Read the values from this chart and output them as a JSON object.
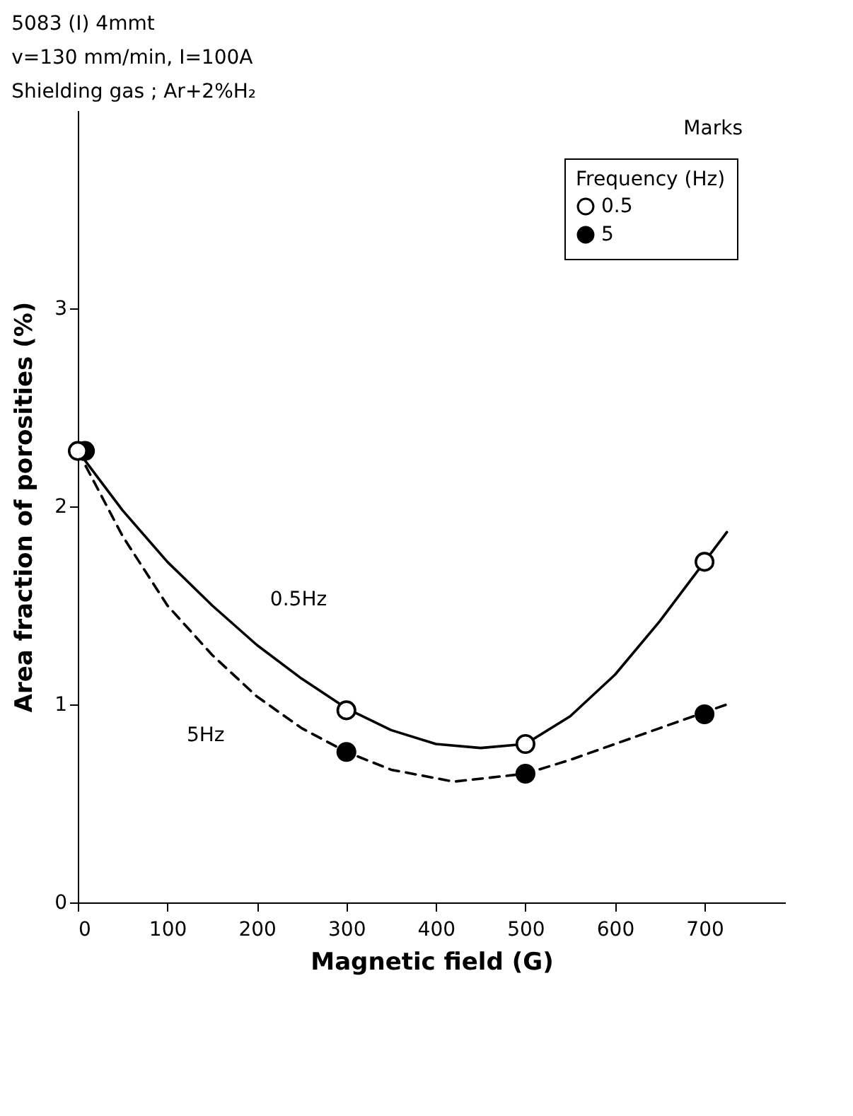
{
  "chart_data": {
    "type": "scatter",
    "annotations": [
      "5083 (I)     4mmt",
      "v=130 mm/min,  I=100A",
      "Shielding gas ; Ar+2%H₂",
      "Marks",
      {
        "text": "0.5Hz",
        "x": 180,
        "y": 1.37
      },
      {
        "text": "5Hz",
        "x": 205,
        "y": 1.0
      }
    ],
    "xlabel": "Magnetic field (G)",
    "ylabel": "Area fraction of porosities (%)",
    "legend_title": "Frequency (Hz)",
    "legend": "top right",
    "xlim": [
      0,
      790
    ],
    "xticks": [
      0,
      100,
      200,
      300,
      400,
      500,
      600,
      700
    ],
    "ylim": [
      0,
      4
    ],
    "yticks": [
      0,
      1,
      2,
      3
    ],
    "grid": false,
    "series": [
      {
        "name": "0.5",
        "marker": "circle",
        "color": "#000000",
        "x": [
          0,
          300,
          500,
          700
        ],
        "values": [
          2.28,
          0.97,
          0.8,
          1.72
        ]
      },
      {
        "name": "5",
        "marker": "circle",
        "color": "#000000",
        "x": [
          8,
          300,
          500,
          700
        ],
        "values": [
          2.28,
          0.76,
          0.65,
          0.95
        ]
      },
      {
        "type": "line",
        "line_style": "solid",
        "color": "#000000",
        "x": [
          0,
          50,
          100,
          150,
          200,
          250,
          300,
          350,
          400,
          450,
          500,
          550,
          600,
          650,
          700,
          725
        ],
        "values": [
          2.28,
          1.98,
          1.72,
          1.5,
          1.3,
          1.13,
          0.98,
          0.87,
          0.8,
          0.78,
          0.8,
          0.94,
          1.15,
          1.42,
          1.72,
          1.87
        ]
      },
      {
        "type": "line",
        "line_style": "dashed",
        "color": "#000000",
        "x": [
          0,
          50,
          100,
          150,
          200,
          250,
          300,
          350,
          420,
          500,
          550,
          600,
          650,
          725
        ],
        "values": [
          2.28,
          1.85,
          1.5,
          1.25,
          1.04,
          0.88,
          0.76,
          0.67,
          0.61,
          0.65,
          0.72,
          0.8,
          0.88,
          1.0
        ]
      }
    ]
  }
}
